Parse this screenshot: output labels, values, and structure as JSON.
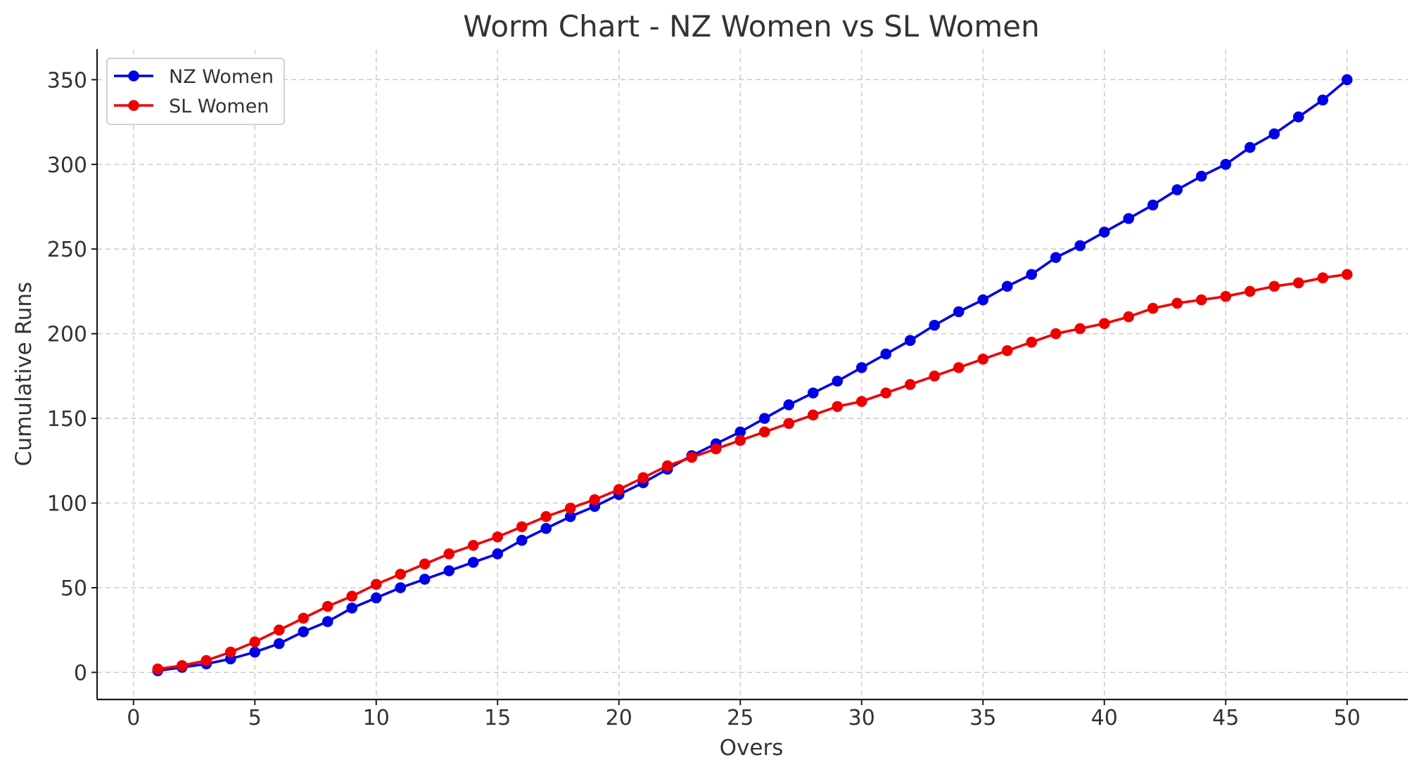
{
  "chart_data": {
    "type": "line",
    "title": "Worm Chart - NZ Women vs SL Women",
    "xlabel": "Overs",
    "ylabel": "Cumulative Runs",
    "xlim": [
      -1.5,
      52.5
    ],
    "ylim": [
      -16,
      368
    ],
    "xticks": [
      0,
      5,
      10,
      15,
      20,
      25,
      30,
      35,
      40,
      45,
      50
    ],
    "yticks": [
      0,
      50,
      100,
      150,
      200,
      250,
      300,
      350
    ],
    "grid": true,
    "legend_position": "top-left",
    "x": [
      1,
      2,
      3,
      4,
      5,
      6,
      7,
      8,
      9,
      10,
      11,
      12,
      13,
      14,
      15,
      16,
      17,
      18,
      19,
      20,
      21,
      22,
      23,
      24,
      25,
      26,
      27,
      28,
      29,
      30,
      31,
      32,
      33,
      34,
      35,
      36,
      37,
      38,
      39,
      40,
      41,
      42,
      43,
      44,
      45,
      46,
      47,
      48,
      49,
      50
    ],
    "series": [
      {
        "name": "NZ Women",
        "color": "#0000e6",
        "values": [
          1,
          3,
          5,
          8,
          12,
          17,
          24,
          30,
          38,
          44,
          50,
          55,
          60,
          65,
          70,
          78,
          85,
          92,
          98,
          105,
          112,
          120,
          128,
          135,
          142,
          150,
          158,
          165,
          172,
          180,
          188,
          196,
          205,
          213,
          220,
          228,
          235,
          245,
          252,
          260,
          268,
          276,
          285,
          293,
          300,
          310,
          318,
          328,
          338,
          350
        ]
      },
      {
        "name": "SL Women",
        "color": "#ee0000",
        "values": [
          2,
          4,
          7,
          12,
          18,
          25,
          32,
          39,
          45,
          52,
          58,
          64,
          70,
          75,
          80,
          86,
          92,
          97,
          102,
          108,
          115,
          122,
          127,
          132,
          137,
          142,
          147,
          152,
          157,
          160,
          165,
          170,
          175,
          180,
          185,
          190,
          195,
          200,
          203,
          206,
          210,
          215,
          218,
          220,
          222,
          225,
          228,
          230,
          233,
          235
        ]
      }
    ]
  }
}
